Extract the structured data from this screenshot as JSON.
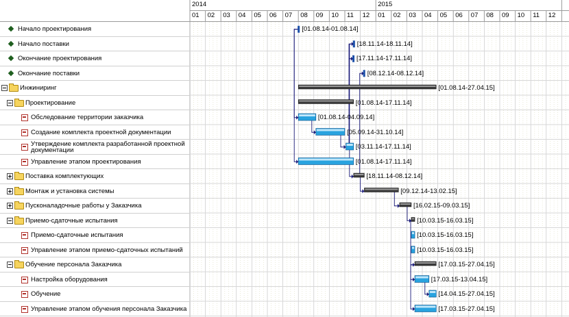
{
  "timeline": {
    "years": [
      {
        "label": "2014",
        "month_index": 0
      },
      {
        "label": "2015",
        "month_index": 12
      }
    ],
    "months": [
      "01",
      "02",
      "03",
      "04",
      "05",
      "06",
      "07",
      "08",
      "09",
      "10",
      "11",
      "12",
      "01",
      "02",
      "03",
      "04",
      "05",
      "06",
      "07",
      "08",
      "09",
      "10",
      "11",
      "12"
    ]
  },
  "colors": {
    "milestone": "#1f5f1f",
    "summary_bar": "#3a3a3a",
    "task_bar": "#29a3df",
    "link": "#1a1a7a",
    "grid": "#d4d4b0"
  },
  "tasks": [
    {
      "name": "Начало проектирования",
      "kind": "milestone",
      "level": 0,
      "start": "01.08.14",
      "end": "01.08.14",
      "label": "[01.08.14-01.08.14]"
    },
    {
      "name": "Начало поставки",
      "kind": "milestone",
      "level": 0,
      "start": "18.11.14",
      "end": "18.11.14",
      "label": "[18.11.14-18.11.14]"
    },
    {
      "name": "Окончание проектирования",
      "kind": "milestone",
      "level": 0,
      "start": "17.11.14",
      "end": "17.11.14",
      "label": "[17.11.14-17.11.14]"
    },
    {
      "name": "Окончание поставки",
      "kind": "milestone",
      "level": 0,
      "start": "08.12.14",
      "end": "08.12.14",
      "label": "[08.12.14-08.12.14]"
    },
    {
      "name": "Инжиниринг",
      "kind": "summary",
      "level": 0,
      "expanded": true,
      "start": "01.08.14",
      "end": "27.04.15",
      "label": "[01.08.14-27.04.15]"
    },
    {
      "name": "Проектирование",
      "kind": "summary",
      "level": 1,
      "expanded": true,
      "start": "01.08.14",
      "end": "17.11.14",
      "label": "[01.08.14-17.11.14]"
    },
    {
      "name": "Обследование территории заказчика",
      "kind": "task",
      "level": 2,
      "start": "01.08.14",
      "end": "04.09.14",
      "label": "[01.08.14-04.09.14]"
    },
    {
      "name": "Создание комплекта проектной документации",
      "kind": "task",
      "level": 2,
      "start": "05.09.14",
      "end": "31.10.14",
      "label": "[05.09.14-31.10.14]"
    },
    {
      "name": "Утверждение комплекта разработанной проектной документации",
      "kind": "task",
      "level": 2,
      "start": "03.11.14",
      "end": "17.11.14",
      "label": "[03.11.14-17.11.14]"
    },
    {
      "name": "Управление этапом проектирования",
      "kind": "task",
      "level": 2,
      "start": "01.08.14",
      "end": "17.11.14",
      "label": "[01.08.14-17.11.14]"
    },
    {
      "name": "Поставка комплектующих",
      "kind": "summary",
      "level": 1,
      "expanded": false,
      "start": "18.11.14",
      "end": "08.12.14",
      "label": "[18.11.14-08.12.14]"
    },
    {
      "name": "Монтаж и установка системы",
      "kind": "summary",
      "level": 1,
      "expanded": false,
      "start": "09.12.14",
      "end": "13.02.15",
      "label": "[09.12.14-13.02.15]"
    },
    {
      "name": "Пусконаладочные работы у Заказчика",
      "kind": "summary",
      "level": 1,
      "expanded": false,
      "start": "16.02.15",
      "end": "09.03.15",
      "label": "[16.02.15-09.03.15]"
    },
    {
      "name": "Приемо-сдаточные испытания",
      "kind": "summary",
      "level": 1,
      "expanded": true,
      "start": "10.03.15",
      "end": "16.03.15",
      "label": "[10.03.15-16.03.15]"
    },
    {
      "name": "Приемо-сдаточные испытания",
      "kind": "task",
      "level": 2,
      "start": "10.03.15",
      "end": "16.03.15",
      "label": "[10.03.15-16.03.15]"
    },
    {
      "name": "Управление этапом приемо-сдаточных испытаний",
      "kind": "task",
      "level": 2,
      "start": "10.03.15",
      "end": "16.03.15",
      "label": "[10.03.15-16.03.15]"
    },
    {
      "name": "Обучение персонала Заказчика",
      "kind": "summary",
      "level": 1,
      "expanded": true,
      "start": "17.03.15",
      "end": "27.04.15",
      "label": "[17.03.15-27.04.15]"
    },
    {
      "name": "Настройка оборудования",
      "kind": "task",
      "level": 2,
      "start": "17.03.15",
      "end": "13.04.15",
      "label": "[17.03.15-13.04.15]"
    },
    {
      "name": "Обучение",
      "kind": "task",
      "level": 2,
      "start": "14.04.15",
      "end": "27.04.15",
      "label": "[14.04.15-27.04.15]"
    },
    {
      "name": "Управление этапом обучения персонала Заказчика",
      "kind": "task",
      "level": 2,
      "start": "17.03.15",
      "end": "27.04.15",
      "label": "[17.03.15-27.04.15]"
    }
  ],
  "links": [
    {
      "from": 0,
      "to": 6
    },
    {
      "from": 6,
      "to": 7
    },
    {
      "from": 7,
      "to": 8
    },
    {
      "from": 0,
      "to": 9
    },
    {
      "from": 8,
      "to": 2
    },
    {
      "from": 2,
      "to": 1
    },
    {
      "from": 1,
      "to": 10
    },
    {
      "from": 10,
      "to": 3
    },
    {
      "from": 10,
      "to": 11
    },
    {
      "from": 11,
      "to": 12
    },
    {
      "from": 12,
      "to": 13
    },
    {
      "from": 13,
      "to": 16
    },
    {
      "from": 16,
      "to": 17
    },
    {
      "from": 17,
      "to": 18
    },
    {
      "from": 16,
      "to": 19
    }
  ]
}
